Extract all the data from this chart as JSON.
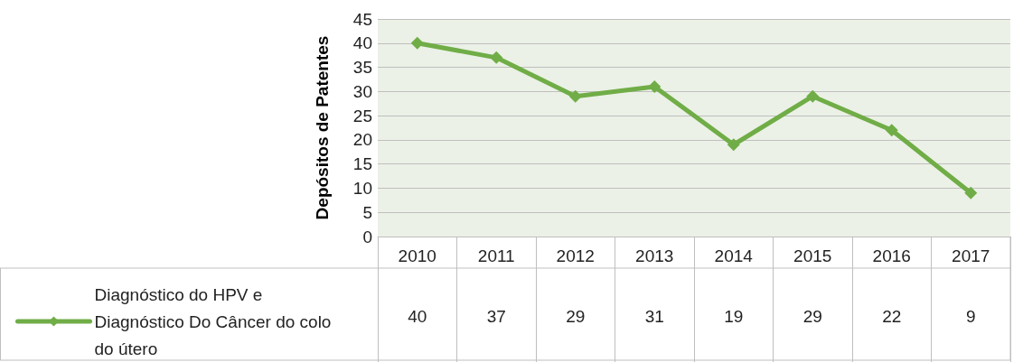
{
  "chart_data": {
    "type": "line",
    "ylabel": "Depósitos de Patentes",
    "categories": [
      "2010",
      "2011",
      "2012",
      "2013",
      "2014",
      "2015",
      "2016",
      "2017"
    ],
    "series": [
      {
        "name": "Diagnóstico do HPV e Diagnóstico Do Câncer do colo do útero",
        "color": "#70ad47",
        "values": [
          40,
          37,
          29,
          31,
          19,
          29,
          22,
          9
        ]
      }
    ],
    "ylim": [
      0,
      45
    ],
    "yticks": [
      0,
      5,
      10,
      15,
      20,
      25,
      30,
      35,
      40,
      45
    ],
    "grid": "y",
    "legend": "bottom left",
    "marker": "diamond",
    "line_style": "solid",
    "data_labels": true
  }
}
